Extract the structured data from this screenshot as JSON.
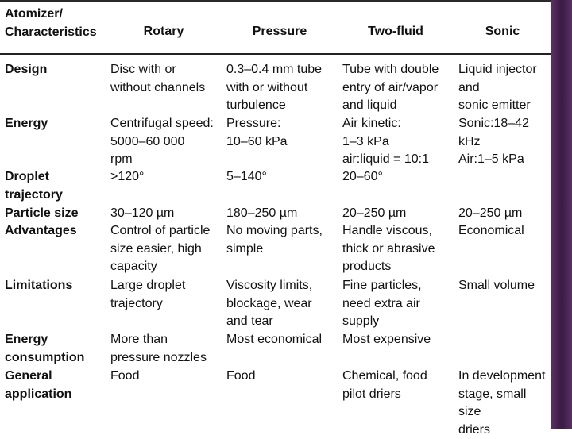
{
  "table": {
    "header": [
      "Atomizer/\nCharacteristics",
      "Rotary",
      "Pressure",
      "Two-fluid",
      "Sonic"
    ],
    "rows": [
      {
        "label": "Design",
        "cells": [
          "Disc with or\n without channels",
          "0.3–0.4 mm tube\n with or without\n turbulence",
          "Tube with double\n entry of air/vapor\n and liquid",
          "Liquid injector and\n sonic emitter"
        ]
      },
      {
        "label": "Energy",
        "cells": [
          "Centrifugal speed:\n 5000–60 000\n rpm",
          "Pressure:\n 10–60 kPa",
          "Air kinetic:\n 1–3 kPa\n air:liquid = 10:1",
          "Sonic:18–42 kHz\nAir:1–5 kPa"
        ]
      },
      {
        "label": "Droplet\n trajectory",
        "cells": [
          ">120°",
          "5–140°",
          "20–60°",
          ""
        ]
      },
      {
        "label": "Particle size",
        "cells": [
          "30–120 µm",
          "180–250 µm",
          "20–250 µm",
          "20–250 µm"
        ]
      },
      {
        "label": "Advantages",
        "cells": [
          "Control of particle\n size easier, high\n capacity",
          "No moving parts,\n simple",
          "Handle viscous,\n thick or abrasive\n products",
          "Economical"
        ]
      },
      {
        "label": "Limitations",
        "cells": [
          "Large droplet\n trajectory",
          "Viscosity limits,\n blockage, wear\n and tear",
          "Fine particles,\n need extra air\n supply",
          "Small volume"
        ]
      },
      {
        "label": "Energy\n consumption",
        "cells": [
          "More than\n pressure nozzles",
          "Most economical",
          "Most expensive",
          ""
        ]
      },
      {
        "label": "General\n application",
        "cells": [
          "Food",
          "Food",
          "Chemical, food\n pilot driers",
          "In development\n stage, small size\n driers"
        ]
      }
    ]
  }
}
